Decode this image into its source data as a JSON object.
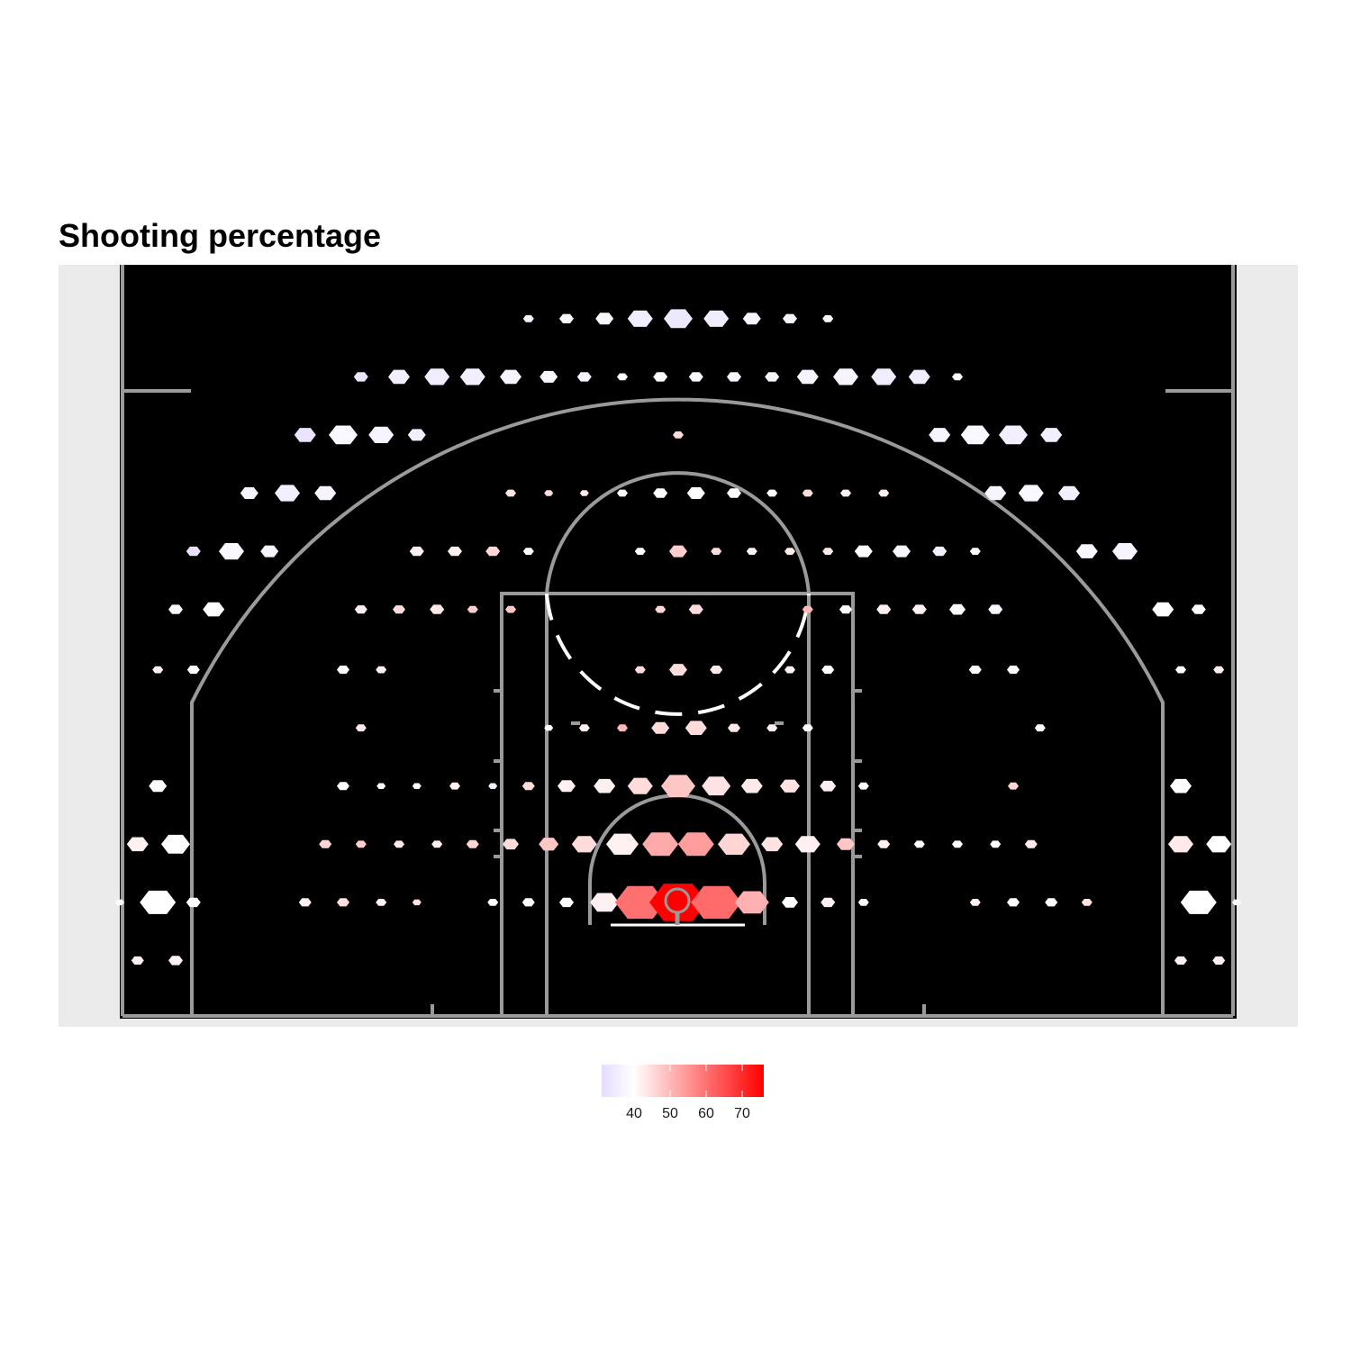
{
  "chart_data": {
    "type": "heatmap",
    "subtype": "hexbin shot chart on basketball half court",
    "title": "Shooting percentage",
    "xlabel": "",
    "ylabel": "",
    "x_range": [
      -25,
      25
    ],
    "y_range": [
      0,
      35
    ],
    "legend": {
      "position": "bottom",
      "ticks": [
        40,
        50,
        60,
        70
      ],
      "range": [
        31,
        76
      ]
    },
    "colors": {
      "low": "#e6dcff",
      "mid": "#ffffff",
      "high": "#ff0000",
      "court": "#000000",
      "lines": "#9a9a9a",
      "panel": "#ebebeb"
    },
    "grid": false,
    "rows": [
      {
        "y": 32.5,
        "bins": [
          [
            -6.7,
            36,
            0.3
          ],
          [
            -5,
            38,
            0.4
          ],
          [
            -3.3,
            38,
            0.5
          ],
          [
            -1.7,
            35,
            0.7
          ],
          [
            0,
            34,
            0.8
          ],
          [
            1.7,
            35,
            0.7
          ],
          [
            3.3,
            37,
            0.5
          ],
          [
            5,
            37,
            0.4
          ],
          [
            6.7,
            39,
            0.3
          ]
        ]
      },
      {
        "y": 29.8,
        "bins": [
          [
            -14.2,
            33,
            0.4
          ],
          [
            -12.5,
            36,
            0.6
          ],
          [
            -10.8,
            35,
            0.7
          ],
          [
            -9.2,
            36,
            0.7
          ],
          [
            -7.5,
            37,
            0.6
          ],
          [
            -5.8,
            38,
            0.5
          ],
          [
            -4.2,
            37,
            0.4
          ],
          [
            -2.5,
            40,
            0.3
          ],
          [
            -0.8,
            40,
            0.4
          ],
          [
            0.8,
            38,
            0.4
          ],
          [
            2.5,
            38,
            0.4
          ],
          [
            4.2,
            37,
            0.4
          ],
          [
            5.8,
            37,
            0.6
          ],
          [
            7.5,
            37,
            0.7
          ],
          [
            9.2,
            35,
            0.7
          ],
          [
            10.8,
            35,
            0.6
          ],
          [
            12.5,
            40,
            0.3
          ]
        ]
      },
      {
        "y": 27.1,
        "bins": [
          [
            -16.7,
            33,
            0.6
          ],
          [
            -15,
            38,
            0.8
          ],
          [
            -13.3,
            37,
            0.7
          ],
          [
            -11.7,
            36,
            0.5
          ],
          [
            0,
            45,
            0.3
          ],
          [
            11.7,
            37,
            0.6
          ],
          [
            13.3,
            38,
            0.8
          ],
          [
            15,
            36,
            0.8
          ],
          [
            16.7,
            36,
            0.6
          ]
        ]
      },
      {
        "y": 24.4,
        "bins": [
          [
            -19.2,
            37,
            0.5
          ],
          [
            -17.5,
            36,
            0.7
          ],
          [
            -15.8,
            37,
            0.6
          ],
          [
            -7.5,
            44,
            0.3
          ],
          [
            -5.8,
            45,
            0.25
          ],
          [
            -4.2,
            43,
            0.25
          ],
          [
            -2.5,
            40,
            0.3
          ],
          [
            -0.8,
            40,
            0.4
          ],
          [
            0.8,
            40,
            0.5
          ],
          [
            2.5,
            40,
            0.4
          ],
          [
            4.2,
            40,
            0.3
          ],
          [
            5.8,
            45,
            0.3
          ],
          [
            7.5,
            42,
            0.3
          ],
          [
            9.2,
            42,
            0.3
          ],
          [
            14.2,
            37,
            0.6
          ],
          [
            15.8,
            38,
            0.7
          ],
          [
            17.5,
            36,
            0.6
          ]
        ]
      },
      {
        "y": 21.7,
        "bins": [
          [
            -21.7,
            32,
            0.4
          ],
          [
            -20,
            38,
            0.7
          ],
          [
            -18.3,
            37,
            0.5
          ],
          [
            -11.7,
            42,
            0.4
          ],
          [
            -10,
            42,
            0.4
          ],
          [
            -8.3,
            46,
            0.4
          ],
          [
            -6.7,
            40,
            0.3
          ],
          [
            -1.7,
            40,
            0.3
          ],
          [
            0,
            47,
            0.5
          ],
          [
            1.7,
            45,
            0.3
          ],
          [
            3.3,
            42,
            0.3
          ],
          [
            5,
            43,
            0.3
          ],
          [
            6.7,
            43,
            0.3
          ],
          [
            8.3,
            40,
            0.5
          ],
          [
            10,
            38,
            0.5
          ],
          [
            11.7,
            36,
            0.4
          ],
          [
            13.3,
            40,
            0.3
          ],
          [
            18.3,
            38,
            0.6
          ],
          [
            20,
            37,
            0.7
          ]
        ]
      },
      {
        "y": 19.0,
        "bins": [
          [
            -22.5,
            38,
            0.4
          ],
          [
            -20.8,
            40,
            0.6
          ],
          [
            -14.2,
            42,
            0.35
          ],
          [
            -12.5,
            45,
            0.35
          ],
          [
            -10.8,
            43,
            0.4
          ],
          [
            -9.2,
            47,
            0.3
          ],
          [
            -7.5,
            48,
            0.3
          ],
          [
            -0.8,
            46,
            0.3
          ],
          [
            0.8,
            45,
            0.4
          ],
          [
            5.8,
            50,
            0.3
          ],
          [
            7.5,
            40,
            0.35
          ],
          [
            9.2,
            42,
            0.4
          ],
          [
            10.8,
            42,
            0.4
          ],
          [
            12.5,
            39,
            0.45
          ],
          [
            14.2,
            38,
            0.4
          ],
          [
            21.7,
            40,
            0.6
          ],
          [
            23.3,
            40,
            0.4
          ]
        ]
      },
      {
        "y": 16.2,
        "bins": [
          [
            -23.3,
            42,
            0.3
          ],
          [
            -21.7,
            40,
            0.35
          ],
          [
            -15,
            40,
            0.35
          ],
          [
            -13.3,
            42,
            0.3
          ],
          [
            -1.7,
            45,
            0.3
          ],
          [
            0,
            45,
            0.5
          ],
          [
            1.7,
            43,
            0.35
          ],
          [
            5,
            42,
            0.3
          ],
          [
            6.7,
            40,
            0.35
          ],
          [
            13.3,
            40,
            0.35
          ],
          [
            15,
            40,
            0.35
          ],
          [
            22.5,
            40,
            0.3
          ],
          [
            24.2,
            42,
            0.3
          ]
        ]
      },
      {
        "y": 13.5,
        "bins": [
          [
            -14.2,
            43,
            0.3
          ],
          [
            -5.8,
            40,
            0.25
          ],
          [
            -4.2,
            42,
            0.3
          ],
          [
            -2.5,
            50,
            0.3
          ],
          [
            -0.8,
            45,
            0.5
          ],
          [
            0.8,
            45,
            0.6
          ],
          [
            2.5,
            43,
            0.35
          ],
          [
            4.2,
            42,
            0.3
          ],
          [
            5.8,
            40,
            0.3
          ],
          [
            16.2,
            40,
            0.3
          ]
        ]
      },
      {
        "y": 10.8,
        "bins": [
          [
            -23.3,
            40,
            0.5
          ],
          [
            -15,
            40,
            0.35
          ],
          [
            -13.3,
            40,
            0.25
          ],
          [
            -11.7,
            40,
            0.25
          ],
          [
            -10,
            42,
            0.3
          ],
          [
            -8.3,
            36,
            0.25
          ],
          [
            -6.7,
            45,
            0.35
          ],
          [
            -5,
            42,
            0.5
          ],
          [
            -3.3,
            42,
            0.6
          ],
          [
            -1.7,
            45,
            0.7
          ],
          [
            0,
            48,
            0.95
          ],
          [
            1.7,
            44,
            0.8
          ],
          [
            3.3,
            43,
            0.6
          ],
          [
            5,
            44,
            0.55
          ],
          [
            6.7,
            42,
            0.45
          ],
          [
            8.3,
            40,
            0.3
          ],
          [
            15,
            46,
            0.3
          ],
          [
            22.5,
            40,
            0.6
          ]
        ]
      },
      {
        "y": 8.1,
        "bins": [
          [
            -24.2,
            42,
            0.6
          ],
          [
            -22.5,
            40,
            0.8
          ],
          [
            -15.8,
            46,
            0.35
          ],
          [
            -14.2,
            47,
            0.3
          ],
          [
            -12.5,
            43,
            0.3
          ],
          [
            -10.8,
            42,
            0.3
          ],
          [
            -9.2,
            46,
            0.35
          ],
          [
            -7.5,
            45,
            0.45
          ],
          [
            -5.8,
            48,
            0.55
          ],
          [
            -4.2,
            45,
            0.7
          ],
          [
            -2.5,
            42,
            0.9
          ],
          [
            -0.8,
            52,
            1.0
          ],
          [
            0.8,
            54,
            1.0
          ],
          [
            2.5,
            46,
            0.9
          ],
          [
            4.2,
            44,
            0.6
          ],
          [
            5.8,
            42,
            0.7
          ],
          [
            7.5,
            48,
            0.5
          ],
          [
            9.2,
            42,
            0.35
          ],
          [
            10.8,
            40,
            0.3
          ],
          [
            12.5,
            40,
            0.3
          ],
          [
            14.2,
            40,
            0.3
          ],
          [
            15.8,
            43,
            0.35
          ],
          [
            22.5,
            43,
            0.7
          ],
          [
            24.2,
            40,
            0.7
          ]
        ]
      },
      {
        "y": 5.4,
        "bins": [
          [
            -25,
            40,
            0.25
          ],
          [
            -23.3,
            40,
            1.0
          ],
          [
            -21.7,
            40,
            0.4
          ],
          [
            -16.7,
            42,
            0.35
          ],
          [
            -15,
            45,
            0.35
          ],
          [
            -13.3,
            42,
            0.3
          ],
          [
            -11.7,
            44,
            0.25
          ],
          [
            -8.3,
            40,
            0.3
          ],
          [
            -6.7,
            40,
            0.35
          ],
          [
            -5,
            40,
            0.4
          ],
          [
            -3.3,
            42,
            0.8
          ],
          [
            -1.7,
            60,
            1.4
          ],
          [
            0,
            76,
            1.6
          ],
          [
            1.7,
            61,
            1.4
          ],
          [
            3.3,
            51,
            0.95
          ],
          [
            5,
            40,
            0.45
          ],
          [
            6.7,
            42,
            0.4
          ],
          [
            8.3,
            40,
            0.3
          ],
          [
            13.3,
            42,
            0.3
          ],
          [
            15,
            40,
            0.35
          ],
          [
            16.7,
            40,
            0.35
          ],
          [
            18.3,
            44,
            0.3
          ],
          [
            23.3,
            40,
            1.0
          ],
          [
            25,
            40,
            0.25
          ]
        ]
      },
      {
        "y": 2.7,
        "bins": [
          [
            -24.2,
            42,
            0.35
          ],
          [
            -22.5,
            42,
            0.4
          ],
          [
            22.5,
            42,
            0.35
          ],
          [
            24.2,
            42,
            0.35
          ]
        ]
      }
    ]
  }
}
